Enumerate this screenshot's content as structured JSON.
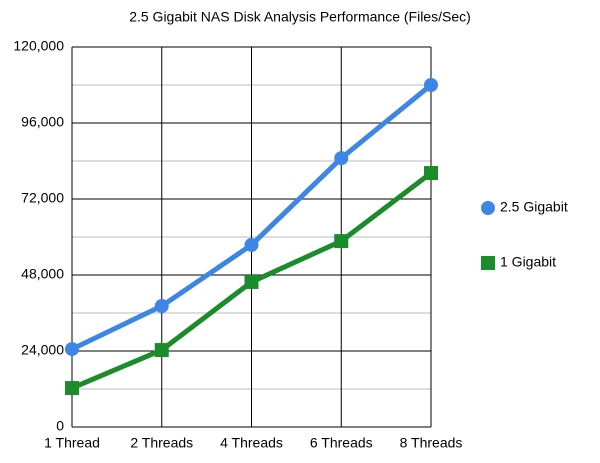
{
  "chart_data": {
    "type": "line",
    "title": "2.5 Gigabit NAS Disk Analysis Performance (Files/Sec)",
    "categories": [
      "1 Thread",
      "2 Threads",
      "4 Threads",
      "6 Threads",
      "8 Threads"
    ],
    "series": [
      {
        "name": "2.5 Gigabit",
        "color": "#3d86e6",
        "marker": "circle",
        "values": [
          24600,
          38200,
          57500,
          84900,
          108000
        ]
      },
      {
        "name": "1 Gigabit",
        "color": "#1a8c2a",
        "marker": "square",
        "values": [
          12300,
          24300,
          45800,
          58700,
          80200
        ]
      }
    ],
    "ylim": [
      0,
      120000
    ],
    "yticks": [
      0,
      {
        "value": 24000,
        "label": "24,000"
      },
      {
        "value": 48000,
        "label": "48,000"
      },
      {
        "value": 72000,
        "label": "72,000"
      },
      {
        "value": 96000,
        "label": "96,000"
      },
      {
        "value": 120000,
        "label": "120,000"
      }
    ],
    "minor_yticks": [
      12000,
      36000,
      60000,
      84000,
      108000
    ],
    "grid": true,
    "legend": "right"
  }
}
